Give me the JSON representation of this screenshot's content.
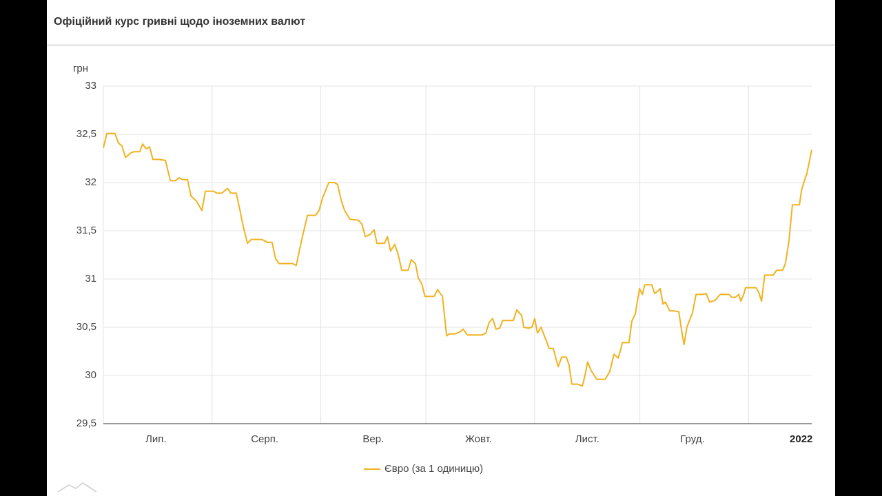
{
  "chart_data": {
    "type": "line",
    "title": "Офіційний курс гривні щодо іноземних валют",
    "y_label": "грн",
    "xlim": [
      0,
      202
    ],
    "xticks": [
      {
        "value": 15,
        "label": "Лип."
      },
      {
        "value": 46,
        "label": "Серп."
      },
      {
        "value": 77,
        "label": "Вер."
      },
      {
        "value": 107,
        "label": "Жовт."
      },
      {
        "value": 138,
        "label": "Лист."
      },
      {
        "value": 168,
        "label": "Груд."
      },
      {
        "value": 199,
        "label": "2022",
        "bold": true
      }
    ],
    "xgrid": [
      0,
      31,
      62,
      92,
      123,
      153,
      184
    ],
    "ylim": [
      29.5,
      33
    ],
    "yticks": [
      {
        "value": 29.5,
        "label": "29,5"
      },
      30,
      {
        "value": 30.5,
        "label": "30,5"
      },
      31,
      {
        "value": 31.5,
        "label": "31,5"
      },
      32,
      {
        "value": 32.5,
        "label": "32,5"
      },
      33
    ],
    "grid": true,
    "legend": "bottom",
    "x": [
      0,
      1.0,
      2.0,
      3.3,
      4.3,
      5.3,
      6.3,
      7.9,
      8.8,
      10.4,
      11.2,
      12.2,
      13.2,
      14.1,
      15.7,
      17.7,
      19.1,
      20.6,
      21.6,
      22.6,
      24.0,
      25.0,
      26.5,
      28.1,
      29.1,
      30.5,
      31.4,
      32.4,
      33.8,
      35.4,
      36.4,
      37.9,
      38.9,
      39.9,
      41.1,
      42.2,
      43.6,
      45.2,
      46.8,
      48.1,
      49.1,
      50.1,
      52.1,
      54.0,
      55.0,
      56.6,
      58.2,
      59.3,
      60.5,
      61.5,
      62.5,
      64.3,
      65.8,
      66.8,
      67.8,
      68.8,
      70.3,
      72.7,
      73.7,
      74.7,
      76.0,
      77.2,
      78.0,
      79.0,
      80.2,
      81.0,
      81.9,
      83.1,
      84.1,
      85.1,
      86.9,
      87.8,
      89.0,
      89.8,
      90.8,
      91.7,
      92.9,
      94.3,
      95.3,
      96.7,
      97.9,
      98.6,
      100.2,
      101.6,
      102.6,
      103.8,
      106.1,
      108.1,
      109.1,
      110.0,
      111.0,
      112.0,
      113.0,
      113.9,
      115.5,
      116.9,
      117.9,
      119.3,
      119.9,
      121.2,
      122.2,
      123.0,
      123.8,
      124.8,
      126.3,
      127.1,
      128.3,
      129.7,
      130.7,
      132.0,
      132.8,
      133.6,
      135.2,
      136.6,
      137.4,
      138.1,
      139.1,
      140.7,
      143.1,
      144.4,
      145.6,
      146.8,
      147.4,
      148.0,
      149.9,
      150.7,
      151.7,
      152.9,
      153.7,
      154.4,
      156.4,
      157.2,
      158.0,
      158.8,
      159.6,
      160.3,
      161.5,
      162.7,
      164.1,
      165.1,
      165.6,
      166.4,
      168.0,
      169.0,
      171.0,
      171.9,
      172.9,
      174.5,
      175.9,
      178.4,
      179.2,
      180.2,
      181.2,
      181.8,
      182.7,
      183.1,
      186.1,
      186.9,
      187.7,
      188.6,
      191.0,
      192.0,
      193.7,
      194.5,
      195.5,
      196.5,
      198.5,
      199.1,
      200.1,
      200.6,
      202.0
    ],
    "series": [
      {
        "name": "Євро (за 1 одиницю)",
        "color": "#f1b21f",
        "values": [
          32.36,
          32.51,
          32.51,
          32.51,
          32.41,
          32.38,
          32.26,
          32.31,
          32.32,
          32.32,
          32.4,
          32.35,
          32.37,
          32.24,
          32.24,
          32.23,
          32.02,
          32.02,
          32.05,
          32.03,
          32.03,
          31.86,
          31.81,
          31.71,
          31.91,
          31.91,
          31.91,
          31.89,
          31.89,
          31.94,
          31.89,
          31.89,
          31.72,
          31.54,
          31.37,
          31.41,
          31.41,
          31.41,
          31.38,
          31.38,
          31.21,
          31.16,
          31.16,
          31.16,
          31.14,
          31.41,
          31.66,
          31.66,
          31.66,
          31.71,
          31.84,
          32.0,
          32.0,
          31.98,
          31.82,
          31.71,
          31.62,
          31.61,
          31.57,
          31.44,
          31.46,
          31.51,
          31.37,
          31.37,
          31.37,
          31.44,
          31.29,
          31.36,
          31.25,
          31.09,
          31.09,
          31.2,
          31.16,
          31.01,
          30.95,
          30.82,
          30.82,
          30.82,
          30.89,
          30.82,
          30.41,
          30.43,
          30.43,
          30.45,
          30.48,
          30.42,
          30.42,
          30.42,
          30.44,
          30.55,
          30.59,
          30.48,
          30.49,
          30.57,
          30.57,
          30.57,
          30.68,
          30.62,
          30.5,
          30.49,
          30.5,
          30.59,
          30.44,
          30.5,
          30.36,
          30.28,
          30.28,
          30.09,
          30.19,
          30.19,
          30.11,
          29.91,
          29.91,
          29.89,
          30.01,
          30.14,
          30.05,
          29.96,
          29.96,
          30.04,
          30.22,
          30.18,
          30.25,
          30.34,
          30.34,
          30.56,
          30.64,
          30.9,
          30.84,
          30.94,
          30.94,
          30.85,
          30.87,
          30.9,
          30.74,
          30.76,
          30.67,
          30.67,
          30.66,
          30.42,
          30.32,
          30.5,
          30.65,
          30.84,
          30.84,
          30.85,
          30.76,
          30.78,
          30.84,
          30.84,
          30.81,
          30.81,
          30.84,
          30.77,
          30.85,
          30.91,
          30.91,
          30.86,
          30.77,
          31.04,
          31.04,
          31.09,
          31.09,
          31.16,
          31.39,
          31.77,
          31.77,
          31.92,
          32.04,
          32.09,
          32.34
        ]
      }
    ]
  }
}
